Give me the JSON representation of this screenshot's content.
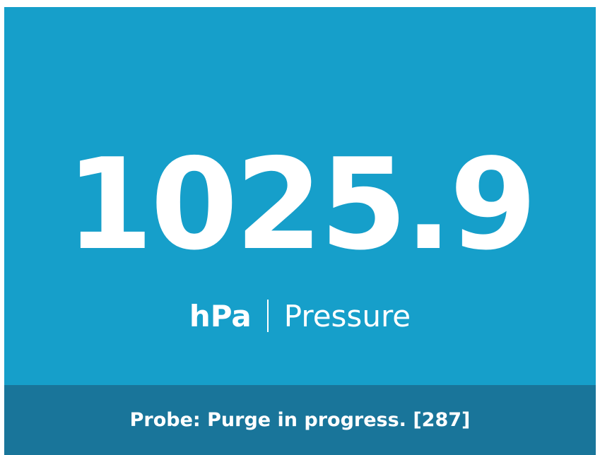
{
  "reading": {
    "value": "1025.9",
    "unit": "hPa",
    "label": "Pressure"
  },
  "footer": {
    "status": "Probe: Purge in progress. [287]"
  }
}
